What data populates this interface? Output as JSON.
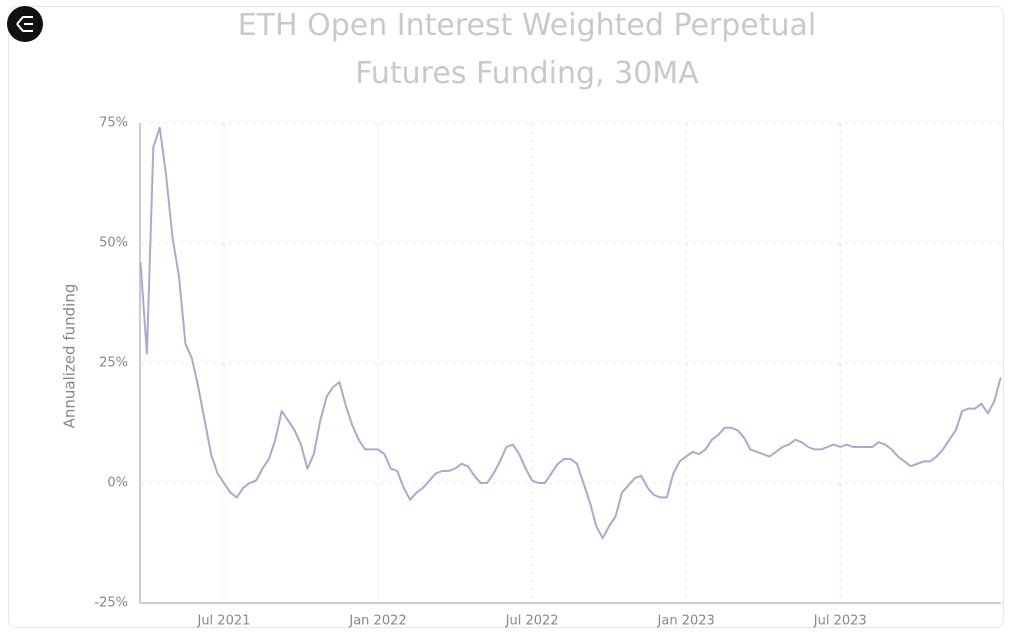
{
  "chart_data": {
    "type": "line",
    "title": "ETH Open Interest Weighted Perpetual Futures Funding, 30MA",
    "y_label": "Annualized funding",
    "categories": [
      null,
      null,
      null,
      null,
      null,
      null,
      null,
      null,
      null,
      null,
      null,
      null,
      null,
      "Jul 2021",
      null,
      null,
      null,
      null,
      null,
      null,
      null,
      null,
      null,
      null,
      null,
      null,
      null,
      null,
      null,
      null,
      null,
      null,
      null,
      null,
      null,
      null,
      null,
      "Jan 2022",
      null,
      null,
      null,
      null,
      null,
      null,
      null,
      null,
      null,
      null,
      null,
      null,
      null,
      null,
      null,
      null,
      null,
      null,
      null,
      null,
      null,
      null,
      null,
      "Jul 2022",
      null,
      null,
      null,
      null,
      null,
      null,
      null,
      null,
      null,
      null,
      null,
      null,
      null,
      null,
      null,
      null,
      null,
      null,
      null,
      null,
      null,
      null,
      null,
      "Jan 2023",
      null,
      null,
      null,
      null,
      null,
      null,
      null,
      null,
      null,
      null,
      null,
      null,
      null,
      null,
      null,
      null,
      null,
      null,
      null,
      null,
      null,
      null,
      null,
      "Jul 2023",
      null,
      null,
      null,
      null,
      null,
      null,
      null,
      null,
      null,
      null,
      null,
      null,
      null,
      null,
      null,
      null,
      null,
      null,
      null,
      null,
      null,
      null,
      null,
      null,
      null
    ],
    "values": [
      46,
      27,
      70,
      74,
      64,
      51,
      43,
      29,
      26,
      20,
      13,
      6,
      2,
      0,
      -2,
      -3,
      -1,
      0,
      0.5,
      3,
      5,
      9,
      15,
      13,
      11,
      8,
      3,
      6,
      13,
      18,
      20,
      21,
      16,
      12,
      9,
      7,
      7,
      7,
      6,
      3,
      2.5,
      -1,
      -3.5,
      -2,
      -1,
      0.5,
      2,
      2.5,
      2.5,
      3,
      4,
      3.5,
      1.5,
      0,
      0,
      2,
      4.5,
      7.5,
      8,
      6,
      3,
      0.5,
      0,
      0,
      2,
      4,
      5,
      5,
      4,
      0,
      -4,
      -9,
      -11.5,
      -9,
      -7,
      -2,
      -0.5,
      1,
      1.5,
      -1,
      -2.5,
      -3,
      -3,
      2,
      4.5,
      5.5,
      6.5,
      6,
      7,
      9,
      10,
      11.5,
      11.5,
      11,
      9.5,
      7,
      6.5,
      6,
      5.5,
      6.5,
      7.5,
      8,
      9,
      8.5,
      7.5,
      7,
      7,
      7.5,
      8,
      7.5,
      8,
      7.5,
      7.5,
      7.5,
      7.5,
      8.5,
      8,
      7,
      5.5,
      4.5,
      3.5,
      4,
      4.5,
      4.5,
      5.5,
      7,
      9,
      11,
      15,
      15.5,
      15.5,
      16.5,
      14.5,
      17,
      22
    ],
    "color": "#a9aad0",
    "ylim": [
      -25,
      75
    ],
    "yticks": [
      {
        "value": -25,
        "label": "-25%"
      },
      {
        "value": 0,
        "label": "0%"
      },
      {
        "value": 25,
        "label": "25%"
      },
      {
        "value": 50,
        "label": "50%"
      },
      {
        "value": 75,
        "label": "75%"
      }
    ],
    "grid": true
  }
}
